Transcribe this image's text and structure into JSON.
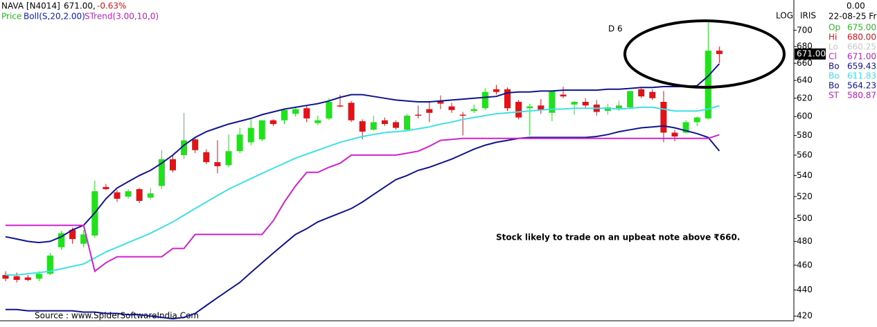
{
  "header": {
    "symbol": "NAVA [N4014]",
    "price": "671.00,",
    "change": "-0.63%",
    "price_label": "Price",
    "boll_label": "Boll(S,20,2.00)",
    "strend_label": "STrend(3.00,10,0)"
  },
  "chart_data": {
    "type": "candlestick",
    "log_scale": true,
    "ylim": [
      417,
      739
    ],
    "yticks": [
      420,
      440,
      460,
      480,
      500,
      520,
      540,
      560,
      580,
      600,
      620,
      640,
      660,
      680,
      700
    ],
    "up_color": "#22e01e",
    "down_color": "#e01418",
    "open": [
      452,
      451,
      450,
      449,
      453,
      475,
      490,
      478,
      485,
      529,
      524,
      520,
      527,
      519,
      530,
      556,
      560,
      576,
      563,
      553,
      550,
      564,
      573,
      576,
      596,
      596,
      603,
      609,
      593,
      598,
      612,
      615,
      595,
      586,
      596,
      594,
      586,
      602,
      608,
      617,
      611,
      602,
      606,
      609,
      630,
      630,
      616,
      609,
      612,
      604,
      624,
      613,
      616,
      613,
      606,
      609,
      610,
      630,
      627,
      616,
      583,
      583,
      594,
      598,
      675
    ],
    "high": [
      455,
      454,
      452,
      455,
      470,
      489,
      492,
      490,
      535,
      532,
      526,
      527,
      528,
      528,
      565,
      560,
      604,
      578,
      566,
      575,
      581,
      588,
      597,
      596,
      597,
      608,
      611,
      612,
      601,
      620,
      624,
      617,
      597,
      601,
      599,
      596,
      603,
      612,
      617,
      623,
      615,
      605,
      613,
      631,
      635,
      632,
      618,
      614,
      619,
      628,
      633,
      617,
      620,
      618,
      614,
      617,
      628,
      632,
      630,
      628,
      586,
      596,
      600,
      710,
      680
    ],
    "low": [
      447,
      446,
      447,
      447,
      452,
      473,
      478,
      475,
      483,
      526,
      515,
      518,
      514,
      517,
      527,
      543,
      556,
      562,
      551,
      542,
      548,
      562,
      570,
      574,
      590,
      592,
      600,
      594,
      591,
      596,
      610,
      594,
      576,
      585,
      590,
      586,
      585,
      598,
      594,
      608,
      604,
      580,
      604,
      607,
      624,
      606,
      597,
      580,
      603,
      595,
      620,
      602,
      609,
      601,
      602,
      606,
      608,
      620,
      618,
      573,
      574,
      582,
      590,
      597,
      660.25
    ],
    "close": [
      449,
      448,
      448,
      453,
      468,
      487,
      482,
      486,
      525,
      527,
      518,
      525,
      516,
      523,
      556,
      545,
      575,
      565,
      553,
      549,
      564,
      581,
      588,
      596,
      592,
      607,
      608,
      598,
      596,
      616,
      611,
      596,
      584,
      594,
      592,
      588,
      601,
      601,
      604,
      614,
      607,
      601,
      608,
      627,
      627,
      609,
      599,
      611,
      607,
      628,
      622,
      616,
      612,
      605,
      610,
      612,
      628,
      622,
      620,
      583,
      579,
      594,
      599,
      675,
      671
    ],
    "overlays": [
      {
        "color": "#10148c",
        "values": [
          484,
          482,
          480,
          479,
          480,
          484,
          490,
          494,
          505,
          518,
          528,
          534,
          540,
          545,
          552,
          560,
          570,
          578,
          584,
          588,
          592,
          595,
          598,
          602,
          605,
          608,
          610,
          612,
          614,
          617,
          621,
          624,
          624,
          622,
          620,
          618,
          617,
          616,
          616,
          617,
          618,
          619,
          620,
          621,
          622,
          626,
          627,
          627,
          628,
          628,
          629,
          629,
          629,
          629,
          630,
          630,
          631,
          632,
          632,
          633,
          633,
          633,
          634,
          645,
          659.43
        ]
      },
      {
        "color": "#3ee0e8",
        "values": [
          452,
          452,
          453,
          454,
          455,
          457,
          459,
          461,
          466,
          471,
          475,
          479,
          483,
          487,
          492,
          497,
          503,
          509,
          515,
          521,
          527,
          532,
          537,
          542,
          547,
          552,
          557,
          561,
          565,
          569,
          573,
          576,
          579,
          581,
          583,
          584,
          585,
          587,
          589,
          592,
          594,
          597,
          599,
          601,
          603,
          604,
          605,
          606,
          607,
          608,
          608,
          609,
          609,
          609,
          609,
          608,
          609,
          610,
          610,
          608,
          606,
          606,
          606,
          608,
          611.83
        ]
      },
      {
        "color": "#10148c",
        "values": [
          425,
          425,
          424,
          424,
          424,
          424,
          424,
          423,
          423,
          422,
          422,
          421,
          421,
          420,
          419,
          418,
          419,
          422,
          428,
          434,
          440,
          446,
          454,
          462,
          470,
          478,
          486,
          491,
          497,
          501,
          505,
          509,
          515,
          522,
          529,
          536,
          540,
          545,
          548,
          552,
          556,
          561,
          566,
          570,
          573,
          575,
          577,
          578,
          578,
          578,
          578,
          578,
          578,
          579,
          581,
          584,
          586,
          588,
          589,
          590,
          588,
          585,
          582,
          578,
          564.23
        ]
      },
      {
        "color": "#d020d0",
        "values": [
          494,
          494,
          494,
          494,
          494,
          494,
          494,
          494,
          455,
          462,
          467,
          467,
          467,
          467,
          467,
          474,
          474,
          486,
          486,
          486,
          486,
          486,
          486,
          486,
          498,
          515,
          530,
          543,
          543,
          548,
          552,
          560,
          560,
          560,
          560,
          560,
          562,
          564,
          569,
          575,
          576,
          577,
          577,
          577,
          577,
          577,
          577,
          577,
          577,
          577,
          577,
          577,
          577,
          577,
          577,
          577,
          577,
          577,
          577,
          577,
          577,
          577,
          577,
          577,
          580.87
        ]
      }
    ],
    "price_tag": "671.00",
    "marker": "D 6",
    "annotation": "Stock likely to trade on an upbeat note above ₹660.",
    "source": "Source : www.SpiderSoftwareIndia.Com",
    "scale_label": "LOG",
    "tool_label": "IRIS"
  },
  "info_panel": {
    "top": "0.00",
    "date": "22-08-25 Fri",
    "rows": [
      {
        "label": "Op",
        "value": "675.00",
        "color": "#22c01e"
      },
      {
        "label": "Hi",
        "value": "680.00",
        "color": "#e01418"
      },
      {
        "label": "Lo",
        "value": "660.25",
        "color": "#c8c8c8"
      },
      {
        "label": "Cl",
        "value": "671.00",
        "color": "#c020c0"
      },
      {
        "label": "Bo",
        "value": "659.43",
        "color": "#10148c"
      },
      {
        "label": "Bo",
        "value": "611.83",
        "color": "#3ee0e8"
      },
      {
        "label": "Bo",
        "value": "564.23",
        "color": "#10148c"
      },
      {
        "label": "ST",
        "value": "580.87",
        "color": "#c020c0"
      }
    ]
  }
}
